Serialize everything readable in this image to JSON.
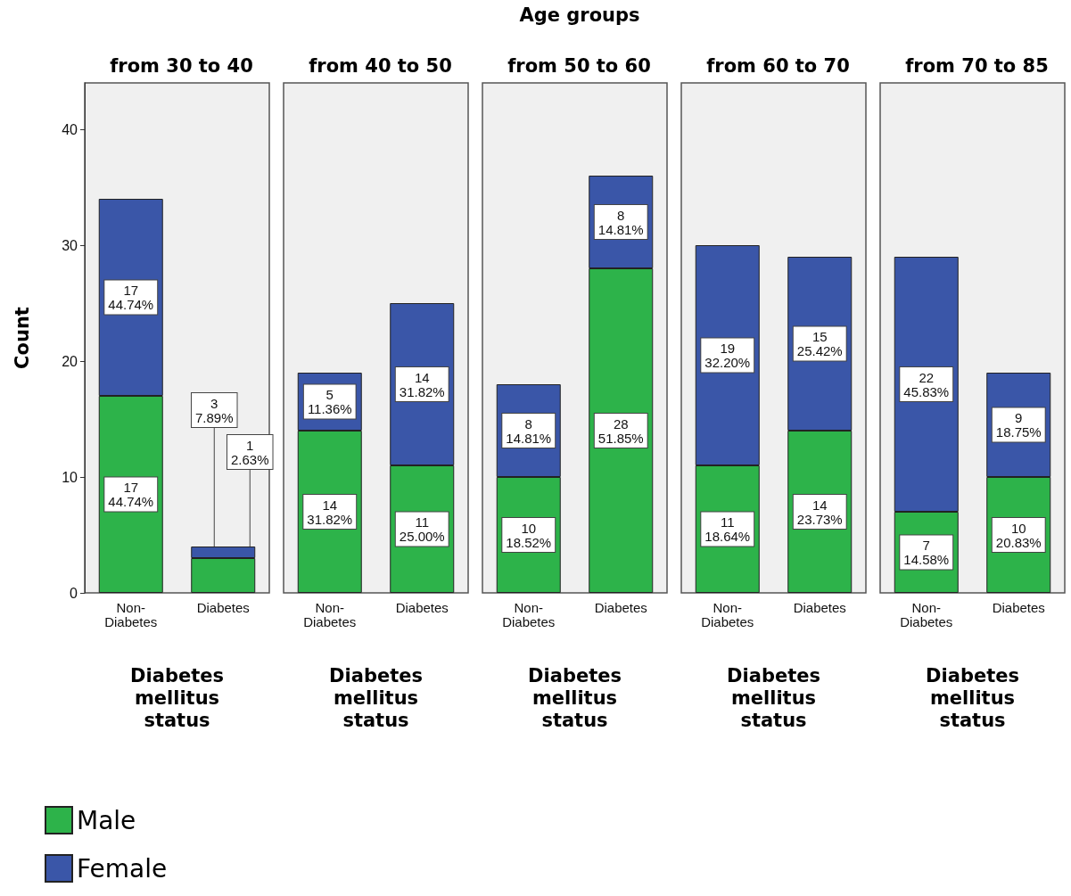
{
  "chart_data": [
    {
      "type": "bar",
      "title": "from 30 to 40",
      "annotations": [
        "Age groups"
      ],
      "xlabel": "Diabetes mellitus status",
      "ylabel": "Count",
      "categories": [
        "Non-Diabetes",
        "Diabetes"
      ],
      "stacked": true,
      "ylim": [
        0,
        44
      ],
      "yticks": [
        0,
        10,
        20,
        30,
        40
      ],
      "grid": false,
      "legend": "bottom left",
      "series": [
        {
          "name": "Male",
          "color": "#2db34a",
          "values": [
            17,
            3
          ],
          "value_labels": [
            "17\n44.74%",
            "3\n7.89%"
          ]
        },
        {
          "name": "Female",
          "color": "#3a56a8",
          "values": [
            17,
            1
          ],
          "value_labels": [
            "17\n44.74%",
            "1\n2.63%"
          ]
        }
      ]
    },
    {
      "type": "bar",
      "title": "from 40 to 50",
      "xlabel": "Diabetes mellitus status",
      "categories": [
        "Non-Diabetes",
        "Diabetes"
      ],
      "stacked": true,
      "ylim": [
        0,
        44
      ],
      "yticks": [
        0,
        10,
        20,
        30,
        40
      ],
      "grid": false,
      "tick_labels": "x",
      "series": [
        {
          "color": "#2db34a",
          "values": [
            14,
            11
          ],
          "value_labels": [
            "14\n31.82%",
            "11\n25.00%"
          ]
        },
        {
          "color": "#3a56a8",
          "values": [
            5,
            14
          ],
          "value_labels": [
            "5\n11.36%",
            "14\n31.82%"
          ]
        }
      ]
    },
    {
      "type": "bar",
      "title": "from 50 to 60",
      "xlabel": "Diabetes mellitus status",
      "categories": [
        "Non-Diabetes",
        "Diabetes"
      ],
      "stacked": true,
      "ylim": [
        0,
        44
      ],
      "yticks": [
        0,
        10,
        20,
        30,
        40
      ],
      "grid": false,
      "tick_labels": "x",
      "series": [
        {
          "color": "#2db34a",
          "values": [
            10,
            28
          ],
          "value_labels": [
            "10\n18.52%",
            "28\n51.85%"
          ]
        },
        {
          "color": "#3a56a8",
          "values": [
            8,
            8
          ],
          "value_labels": [
            "8\n14.81%",
            "8\n14.81%"
          ]
        }
      ]
    },
    {
      "type": "bar",
      "title": "from 60 to 70",
      "xlabel": "Diabetes mellitus status",
      "categories": [
        "Non-Diabetes",
        "Diabetes"
      ],
      "stacked": true,
      "ylim": [
        0,
        44
      ],
      "yticks": [
        0,
        10,
        20,
        30,
        40
      ],
      "grid": false,
      "tick_labels": "x",
      "series": [
        {
          "color": "#2db34a",
          "values": [
            11,
            14
          ],
          "value_labels": [
            "11\n18.64%",
            "14\n23.73%"
          ]
        },
        {
          "color": "#3a56a8",
          "values": [
            19,
            15
          ],
          "value_labels": [
            "19\n32.20%",
            "15\n25.42%"
          ]
        }
      ]
    },
    {
      "type": "bar",
      "title": "from 70 to 85",
      "xlabel": "Diabetes mellitus status",
      "categories": [
        "Non-Diabetes",
        "Diabetes"
      ],
      "stacked": true,
      "ylim": [
        0,
        44
      ],
      "yticks": [
        0,
        10,
        20,
        30,
        40
      ],
      "grid": false,
      "tick_labels": "x",
      "series": [
        {
          "color": "#2db34a",
          "values": [
            7,
            10
          ],
          "value_labels": [
            "7\n14.58%",
            "10\n20.83%"
          ]
        },
        {
          "color": "#3a56a8",
          "values": [
            22,
            9
          ],
          "value_labels": [
            "22\n45.83%",
            "9\n18.75%"
          ]
        }
      ]
    }
  ]
}
